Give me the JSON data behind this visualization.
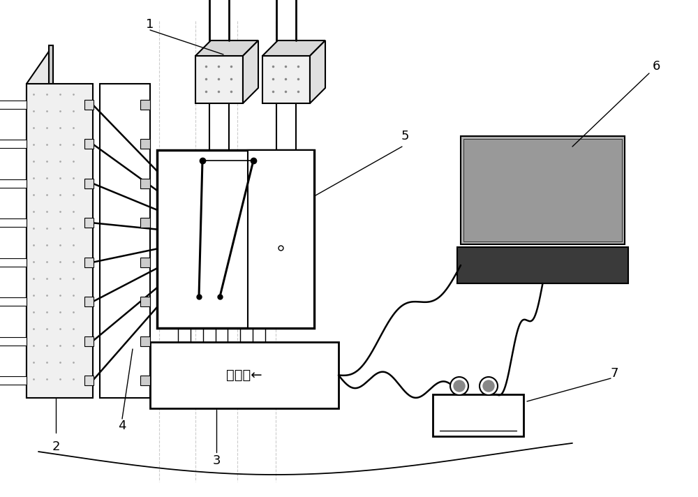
{
  "bg_color": "#ffffff",
  "lc": "#000000",
  "label_1": "1",
  "label_2": "2",
  "label_3": "3",
  "label_4": "4",
  "label_5": "5",
  "label_6": "6",
  "label_7": "7",
  "mcu_text": "单片机←",
  "laptop_screen_color": "#aaaaaa",
  "laptop_screen_inner": "#999999",
  "laptop_base_color": "#444444",
  "figsize": [
    10.0,
    7.12
  ],
  "dpi": 100
}
